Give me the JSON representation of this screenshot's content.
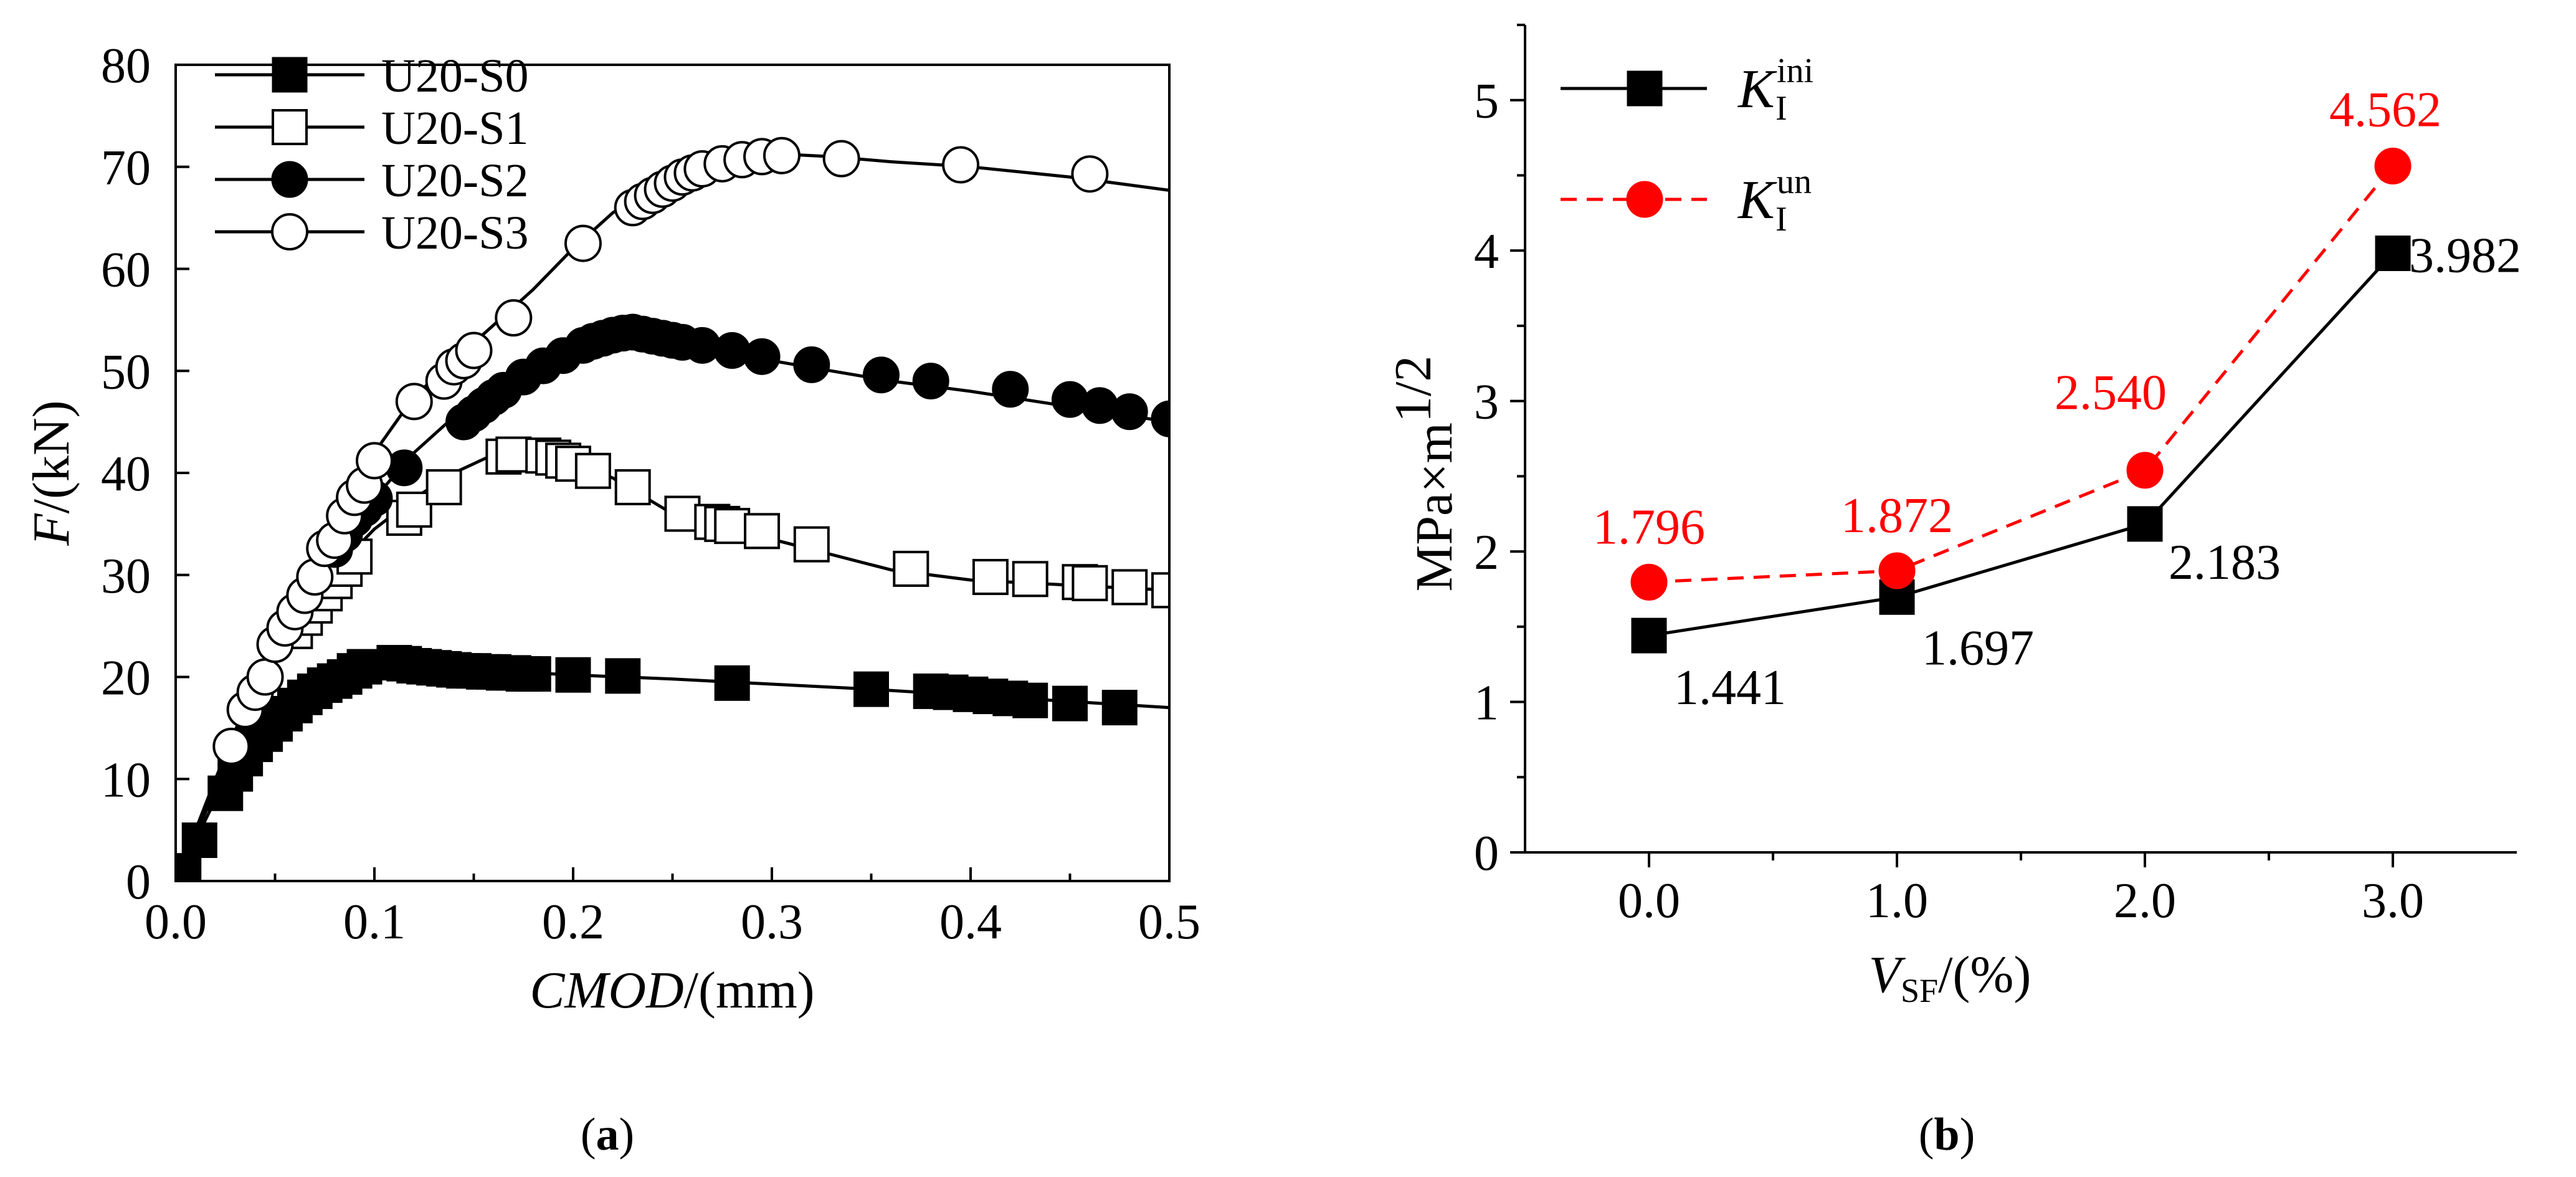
{
  "chart_data": [
    {
      "type": "line",
      "panel_label": "a",
      "xlabel_italic": "CMOD",
      "xlabel_unit": "/(mm)",
      "ylabel_italic": "F",
      "ylabel_unit": "/(kN)",
      "xlim": [
        0,
        0.5
      ],
      "ylim": [
        0,
        80
      ],
      "x_ticks": [
        "0.0",
        "0.1",
        "0.2",
        "0.3",
        "0.4",
        "0.5"
      ],
      "y_ticks": [
        "0",
        "10",
        "20",
        "30",
        "40",
        "50",
        "60",
        "70",
        "80"
      ],
      "grid": false,
      "legend_position": "top-left",
      "series": [
        {
          "name": "U20-S0",
          "marker": "filled-square",
          "curve_x": [
            0.0,
            0.01,
            0.02,
            0.03,
            0.04,
            0.05,
            0.06,
            0.07,
            0.08,
            0.09,
            0.1,
            0.11,
            0.12,
            0.14,
            0.16,
            0.18,
            0.2,
            0.25,
            0.3,
            0.35,
            0.4,
            0.45,
            0.5
          ],
          "curve_y": [
            0.0,
            4.0,
            8.0,
            11.5,
            14.0,
            16.0,
            17.8,
            19.0,
            20.0,
            20.8,
            21.3,
            21.5,
            21.3,
            21.0,
            20.7,
            20.4,
            20.2,
            19.8,
            19.3,
            18.8,
            18.2,
            17.6,
            17.0
          ],
          "marker_x": [
            0.004,
            0.012,
            0.025,
            0.03,
            0.035,
            0.04,
            0.045,
            0.05,
            0.055,
            0.06,
            0.065,
            0.07,
            0.075,
            0.08,
            0.085,
            0.09,
            0.095,
            0.11,
            0.115,
            0.12,
            0.125,
            0.13,
            0.135,
            0.14,
            0.145,
            0.15,
            0.155,
            0.16,
            0.165,
            0.17,
            0.175,
            0.18,
            0.2,
            0.225,
            0.28,
            0.35,
            0.38,
            0.39,
            0.4,
            0.41,
            0.42,
            0.43,
            0.45,
            0.475
          ],
          "marker_y": [
            1.0,
            4.0,
            8.6,
            10.5,
            12.0,
            13.4,
            14.4,
            15.4,
            16.4,
            17.2,
            18.0,
            18.6,
            19.2,
            19.6,
            20.0,
            20.6,
            21.0,
            21.4,
            21.3,
            21.1,
            21.0,
            20.9,
            20.8,
            20.7,
            20.6,
            20.6,
            20.5,
            20.5,
            20.4,
            20.4,
            20.3,
            20.3,
            20.2,
            20.1,
            19.4,
            18.8,
            18.6,
            18.5,
            18.3,
            18.1,
            17.9,
            17.7,
            17.4,
            17.0
          ]
        },
        {
          "name": "U20-S1",
          "marker": "open-square",
          "curve_x": [
            0.0,
            0.02,
            0.04,
            0.06,
            0.08,
            0.1,
            0.12,
            0.14,
            0.16,
            0.17,
            0.18,
            0.2,
            0.22,
            0.25,
            0.28,
            0.3,
            0.33,
            0.36,
            0.4,
            0.45,
            0.5
          ],
          "curve_y": [
            0.0,
            9.0,
            17.5,
            25.0,
            30.5,
            34.5,
            37.5,
            40.0,
            41.8,
            42.0,
            41.8,
            41.0,
            39.5,
            36.0,
            34.5,
            33.5,
            32.0,
            30.5,
            29.5,
            29.0,
            28.5
          ],
          "marker_x": [
            0.06,
            0.065,
            0.07,
            0.075,
            0.08,
            0.085,
            0.09,
            0.115,
            0.12,
            0.135,
            0.165,
            0.17,
            0.185,
            0.19,
            0.195,
            0.2,
            0.21,
            0.23,
            0.255,
            0.27,
            0.275,
            0.28,
            0.295,
            0.32,
            0.37,
            0.41,
            0.43,
            0.455,
            0.46,
            0.48,
            0.5
          ],
          "marker_y": [
            24.5,
            25.8,
            27.0,
            28.2,
            29.4,
            30.6,
            31.8,
            35.6,
            36.4,
            38.6,
            41.6,
            41.8,
            41.7,
            41.5,
            41.2,
            40.9,
            40.2,
            38.6,
            36.0,
            35.2,
            35.0,
            34.8,
            34.3,
            33.0,
            30.6,
            29.8,
            29.6,
            29.3,
            29.2,
            28.8,
            28.5
          ]
        },
        {
          "name": "U20-S2",
          "marker": "filled-circle",
          "curve_x": [
            0.0,
            0.02,
            0.04,
            0.06,
            0.08,
            0.1,
            0.12,
            0.14,
            0.16,
            0.18,
            0.2,
            0.22,
            0.23,
            0.24,
            0.26,
            0.28,
            0.3,
            0.33,
            0.36,
            0.4,
            0.45,
            0.5
          ],
          "curve_y": [
            0.0,
            9.0,
            17.5,
            25.5,
            32.0,
            37.5,
            42.0,
            45.5,
            48.5,
            51.0,
            52.5,
            53.5,
            53.8,
            53.6,
            52.8,
            51.8,
            51.0,
            50.0,
            49.0,
            48.0,
            46.5,
            45.0
          ],
          "marker_x": [
            0.08,
            0.085,
            0.09,
            0.095,
            0.1,
            0.115,
            0.145,
            0.15,
            0.155,
            0.16,
            0.165,
            0.175,
            0.185,
            0.195,
            0.205,
            0.21,
            0.215,
            0.22,
            0.225,
            0.23,
            0.235,
            0.24,
            0.245,
            0.25,
            0.255,
            0.265,
            0.28,
            0.295,
            0.32,
            0.355,
            0.38,
            0.42,
            0.45,
            0.465,
            0.48,
            0.5
          ],
          "marker_y": [
            32.5,
            34.0,
            35.5,
            36.5,
            37.5,
            40.5,
            45.0,
            45.8,
            46.6,
            47.4,
            48.1,
            49.4,
            50.5,
            51.5,
            52.5,
            52.9,
            53.2,
            53.5,
            53.7,
            53.8,
            53.6,
            53.4,
            53.2,
            53.0,
            52.8,
            52.5,
            52.0,
            51.4,
            50.6,
            49.6,
            49.0,
            48.2,
            47.2,
            46.6,
            46.0,
            45.3
          ]
        },
        {
          "name": "U20-S3",
          "marker": "open-circle",
          "curve_x": [
            0.0,
            0.02,
            0.04,
            0.06,
            0.08,
            0.1,
            0.12,
            0.14,
            0.16,
            0.18,
            0.2,
            0.22,
            0.24,
            0.26,
            0.28,
            0.3,
            0.31,
            0.33,
            0.36,
            0.4,
            0.45,
            0.5
          ],
          "curve_y": [
            0.0,
            10.0,
            19.5,
            28.0,
            35.5,
            42.0,
            47.5,
            51.0,
            54.5,
            58.0,
            62.0,
            65.5,
            68.0,
            69.5,
            70.5,
            71.0,
            71.2,
            71.0,
            70.5,
            70.0,
            69.0,
            67.7
          ],
          "marker_x": [
            0.028,
            0.035,
            0.04,
            0.045,
            0.05,
            0.055,
            0.06,
            0.065,
            0.07,
            0.075,
            0.08,
            0.085,
            0.09,
            0.095,
            0.1,
            0.12,
            0.135,
            0.14,
            0.145,
            0.15,
            0.17,
            0.205,
            0.23,
            0.235,
            0.24,
            0.245,
            0.25,
            0.255,
            0.26,
            0.265,
            0.275,
            0.285,
            0.295,
            0.305,
            0.335,
            0.395,
            0.46
          ],
          "marker_y": [
            13.2,
            16.8,
            18.5,
            20.0,
            23.2,
            24.8,
            26.4,
            28.0,
            29.8,
            32.6,
            33.4,
            35.8,
            37.6,
            38.8,
            41.2,
            47.0,
            49.0,
            50.4,
            51.0,
            52.0,
            55.2,
            62.5,
            66.0,
            66.6,
            67.2,
            67.8,
            68.4,
            69.0,
            69.4,
            69.8,
            70.3,
            70.7,
            71.0,
            71.1,
            70.8,
            70.2,
            69.3
          ]
        }
      ]
    },
    {
      "type": "line",
      "panel_label": "b",
      "xlabel_italic": "V",
      "xlabel_sub": "SF",
      "xlabel_unit": "/(%)",
      "ylabel": "MPa×m",
      "ylabel_sup": "1/2",
      "xlim": [
        -0.5,
        3.5
      ],
      "ylim": [
        0,
        5.5
      ],
      "x_ticks": [
        "0.0",
        "1.0",
        "2.0",
        "3.0"
      ],
      "y_ticks": [
        "0",
        "1",
        "2",
        "3",
        "4",
        "5"
      ],
      "grid": false,
      "legend_position": "top-left",
      "series": [
        {
          "name_main": "K",
          "name_sub": "I",
          "name_sup": "ini",
          "color": "#000000",
          "line_style": "solid",
          "marker": "filled-square",
          "x": [
            0,
            1,
            2,
            3
          ],
          "y": [
            1.441,
            1.697,
            2.183,
            3.982
          ],
          "labels": [
            "1.441",
            "1.697",
            "2.183",
            "3.982"
          ]
        },
        {
          "name_main": "K",
          "name_sub": "I",
          "name_sup": "un",
          "color": "#ff0000",
          "line_style": "dashed",
          "marker": "filled-circle",
          "x": [
            0,
            1,
            2,
            3
          ],
          "y": [
            1.796,
            1.872,
            2.54,
            4.562
          ],
          "labels": [
            "1.796",
            "1.872",
            "2.540",
            "4.562"
          ]
        }
      ]
    }
  ]
}
